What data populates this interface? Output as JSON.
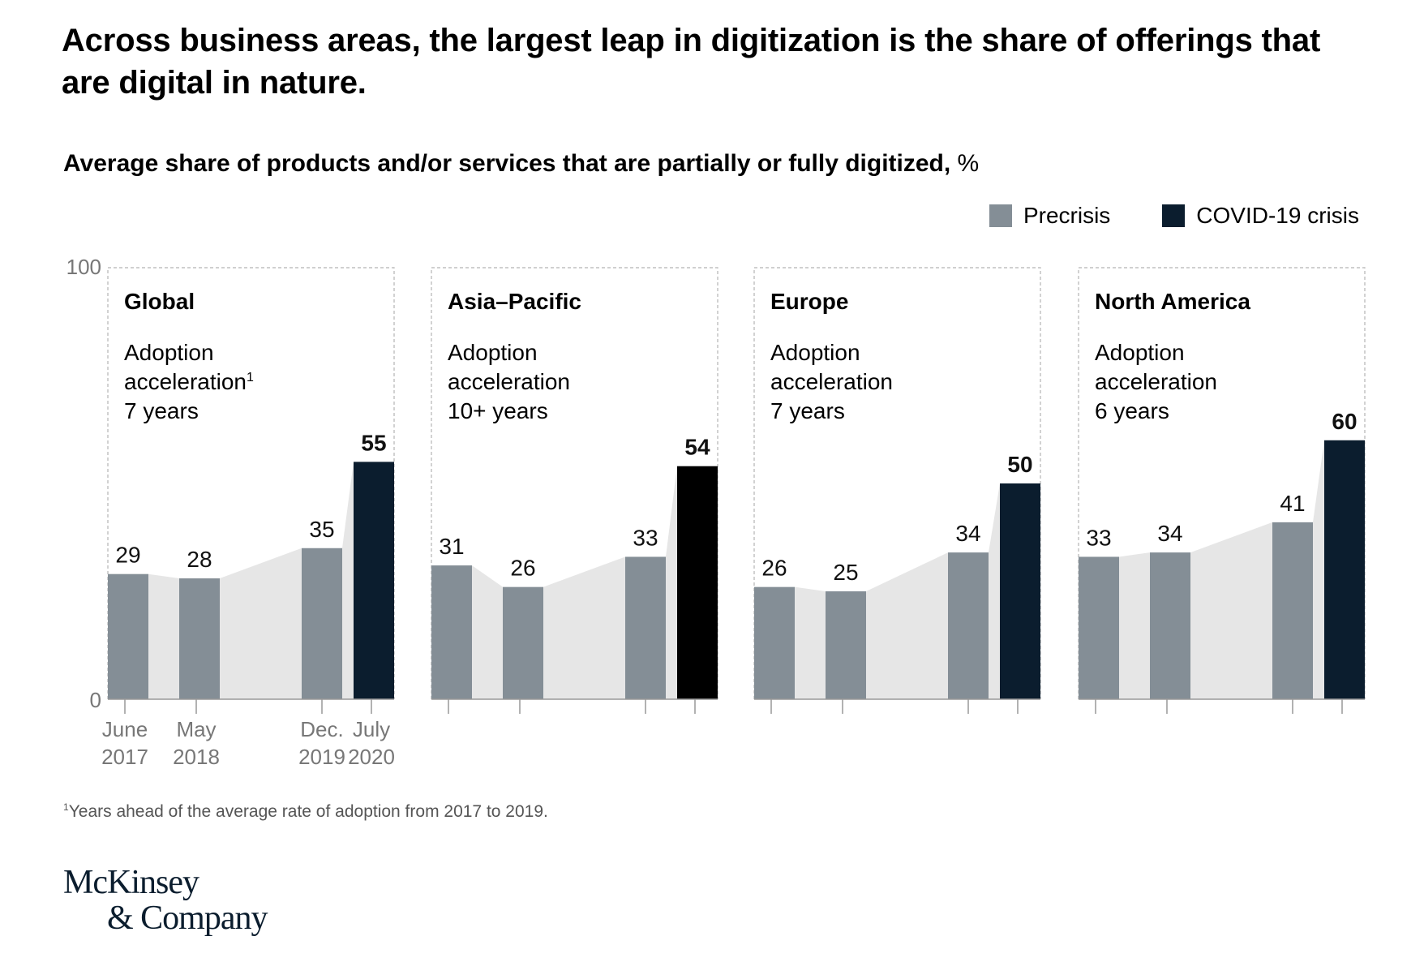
{
  "title": "Across business areas, the largest leap in digitization is the share of offerings that are digital in nature.",
  "subtitle_bold": "Average share of products and/or services that are partially or fully digitized,",
  "subtitle_unit": " %",
  "legend": [
    {
      "label": "Precrisis",
      "color": "#848e96"
    },
    {
      "label": "COVID-19 crisis",
      "color": "#0b1d2e"
    }
  ],
  "footnote_mark": "1",
  "footnote": "Years ahead of the average rate of adoption from 2017 to 2019.",
  "logo": {
    "line1": "McKinsey",
    "line2": "& Company"
  },
  "chart_data": {
    "type": "bar",
    "title": "Average share of products and/or services that are partially or fully digitized, %",
    "ylim": [
      0,
      100
    ],
    "y_ticks": [
      "0",
      "100"
    ],
    "categories": [
      [
        "June",
        "2017"
      ],
      [
        "May",
        "2018"
      ],
      [
        "Dec.",
        "2019"
      ],
      [
        "July",
        "2020"
      ]
    ],
    "colors": {
      "precrisis": "#848e96",
      "crisis": "#0b1d2e",
      "crisis_asia": "#000000",
      "area": "#e6e6e6"
    },
    "panels": [
      {
        "name": "Global",
        "note_lines": [
          "Adoption",
          "acceleration"
        ],
        "note_sup": "1",
        "years": "7 years",
        "values": [
          29,
          28,
          35,
          55
        ]
      },
      {
        "name": "Asia–Pacific",
        "note_lines": [
          "Adoption",
          "acceleration"
        ],
        "note_sup": "",
        "years": "10+ years",
        "values": [
          31,
          26,
          33,
          54
        ]
      },
      {
        "name": "Europe",
        "note_lines": [
          "Adoption",
          "acceleration"
        ],
        "note_sup": "",
        "years": "7 years",
        "values": [
          26,
          25,
          34,
          50
        ]
      },
      {
        "name": "North America",
        "note_lines": [
          "Adoption",
          "acceleration"
        ],
        "note_sup": "",
        "years": "6 years",
        "values": [
          33,
          34,
          41,
          60
        ]
      }
    ]
  }
}
